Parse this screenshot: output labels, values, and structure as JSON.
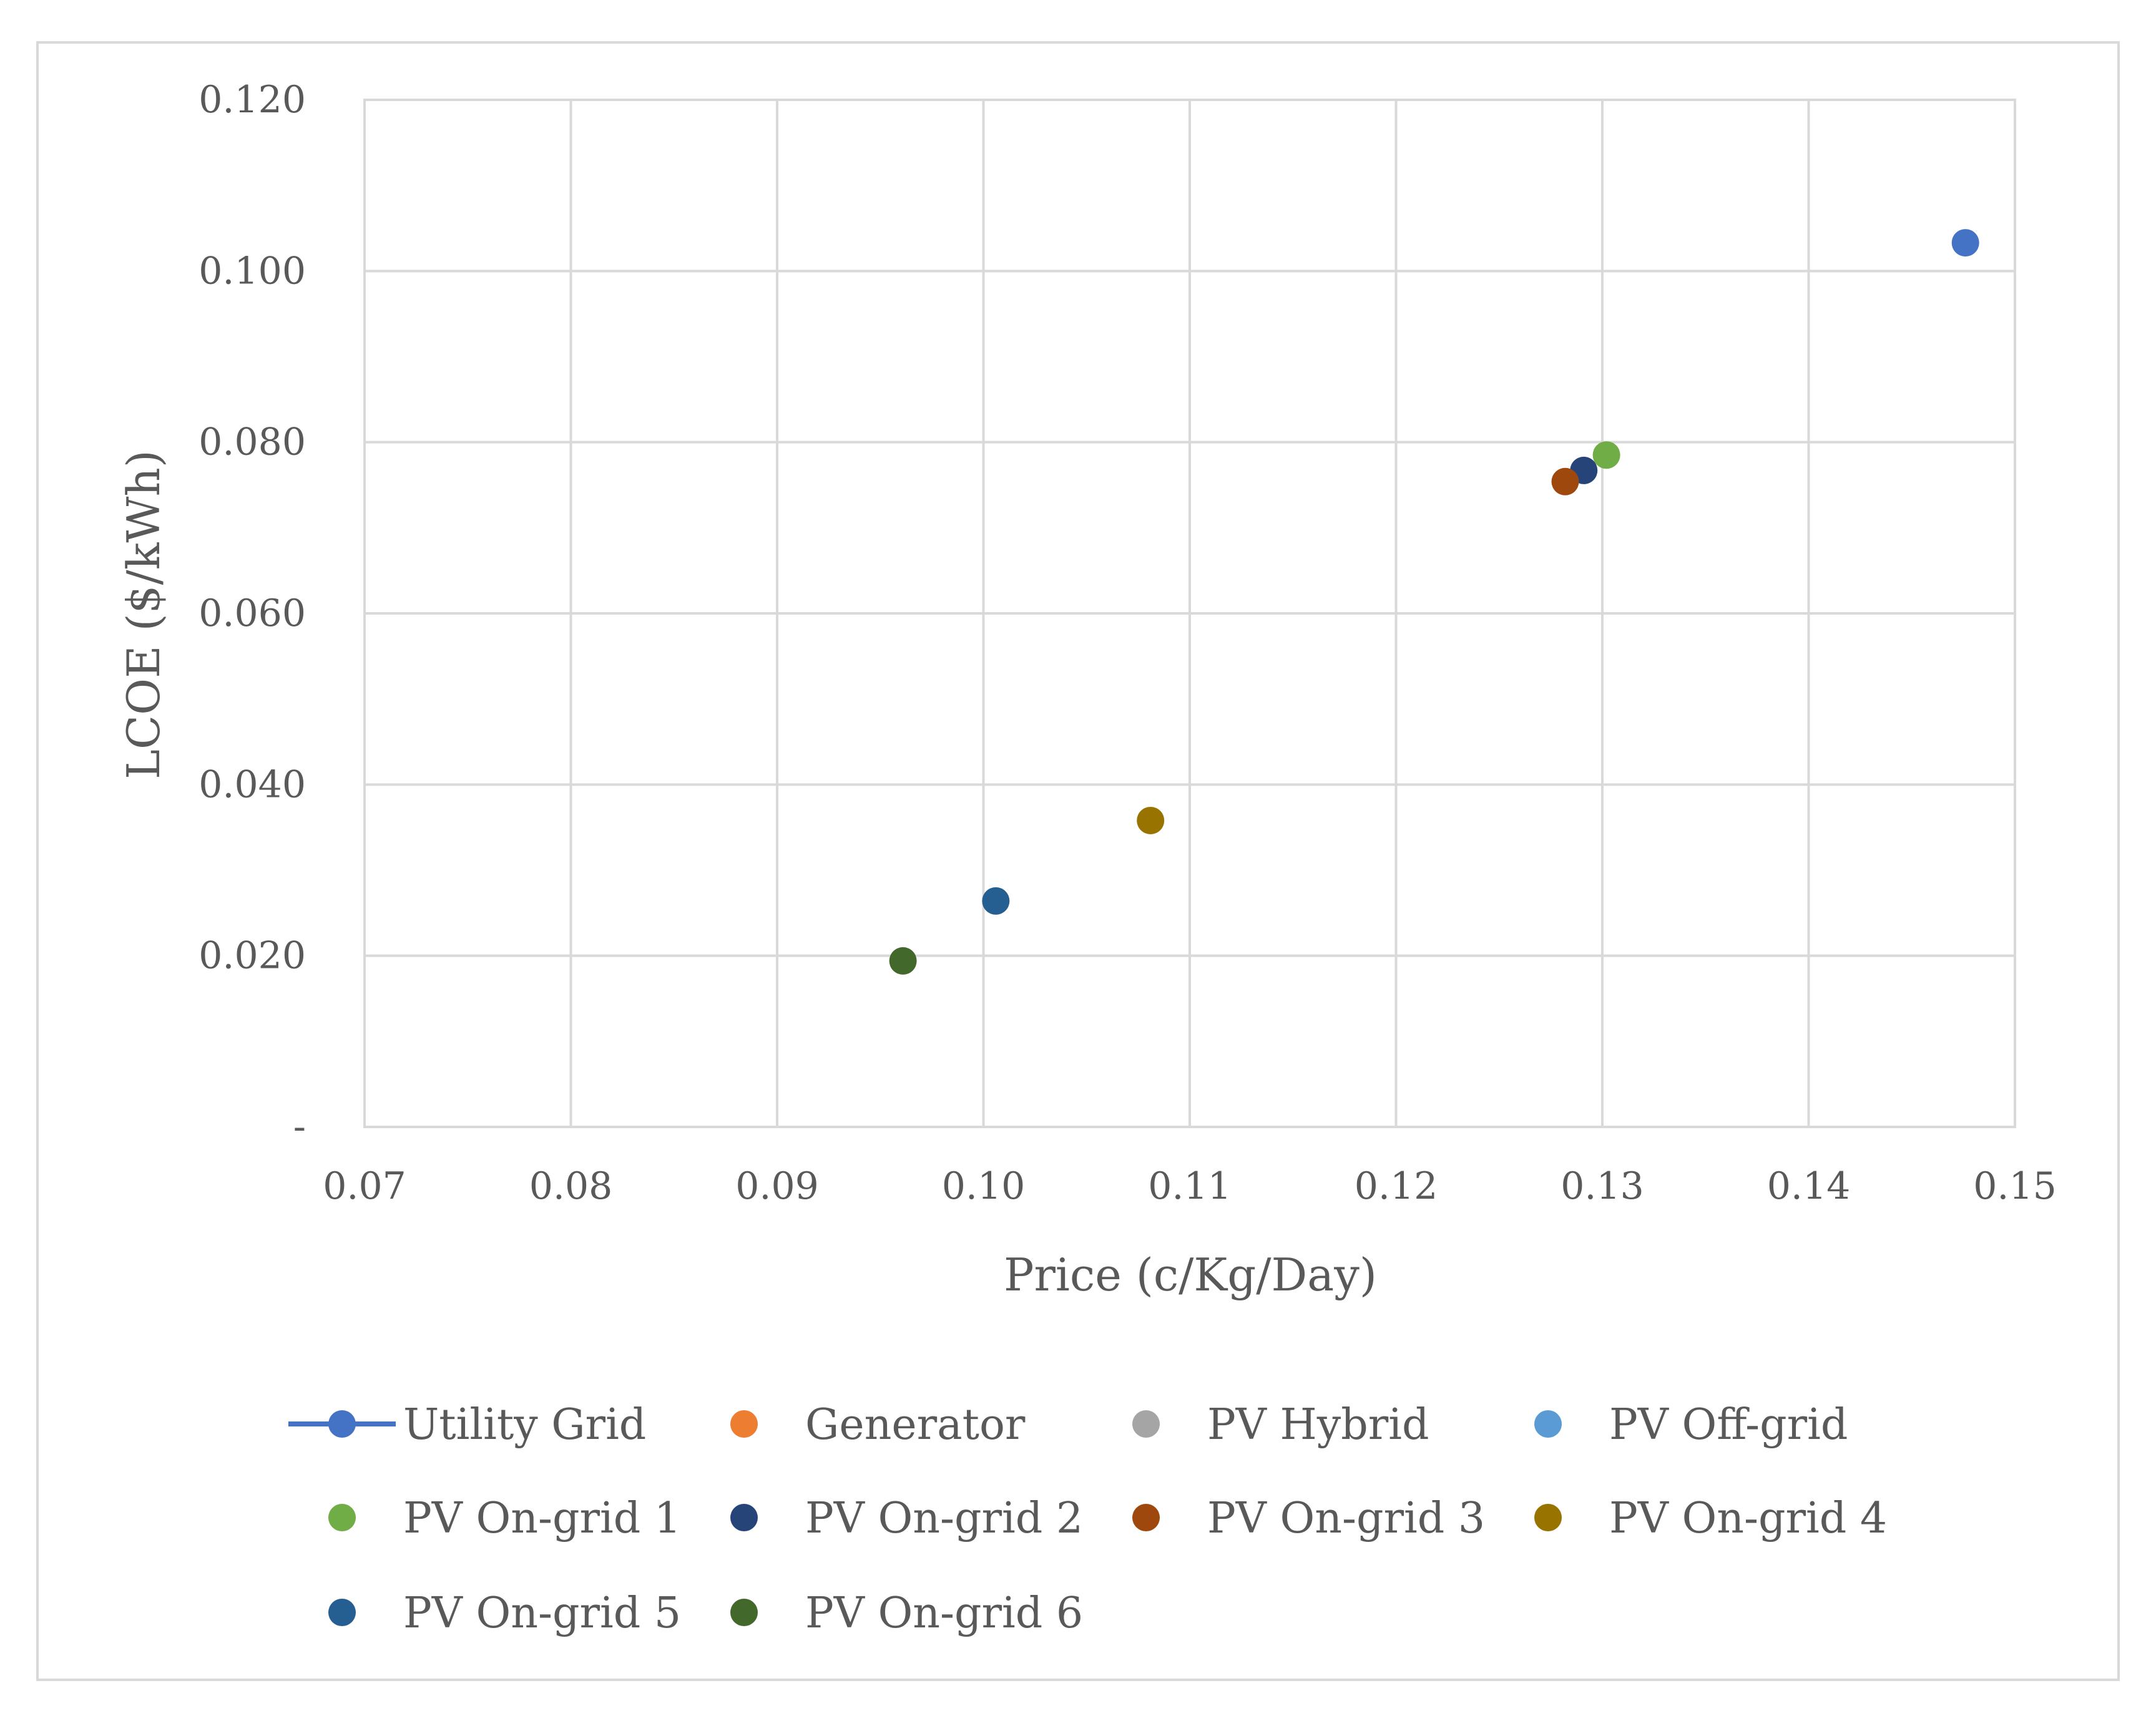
{
  "chart_data": {
    "type": "scatter",
    "title": "",
    "xlabel": "Price (c/Kg/Day)",
    "ylabel": "LCOE ($/kWh)",
    "xlim": [
      0.07,
      0.15
    ],
    "ylim": [
      0,
      0.12
    ],
    "grid": true,
    "x_ticks": [
      0.07,
      0.08,
      0.09,
      0.1,
      0.11,
      0.12,
      0.13,
      0.14,
      0.15
    ],
    "x_tick_labels": [
      "0.07",
      "0.08",
      "0.09",
      "0.10",
      "0.11",
      "0.12",
      "0.13",
      "0.14",
      "0.15"
    ],
    "y_ticks": [
      0,
      0.02,
      0.04,
      0.06,
      0.08,
      0.1,
      0.12
    ],
    "y_tick_labels": [
      "-",
      "0.020",
      "0.040",
      "0.060",
      "0.080",
      "0.100",
      "0.120"
    ],
    "legend_position": "bottom",
    "series": [
      {
        "name": "Utility Grid",
        "color": "#4472C4",
        "marker": "line-circle",
        "points": [
          [
            0.1476,
            0.1033
          ]
        ]
      },
      {
        "name": "Generator",
        "color": "#ED7D31",
        "marker": "circle",
        "points": []
      },
      {
        "name": "PV Hybrid",
        "color": "#A5A5A5",
        "marker": "circle",
        "points": []
      },
      {
        "name": "PV Off-grid",
        "color": "#5B9BD5",
        "marker": "circle",
        "points": []
      },
      {
        "name": "PV On-grid 1",
        "color": "#70AD47",
        "marker": "circle",
        "points": [
          [
            0.1302,
            0.0785
          ]
        ]
      },
      {
        "name": "PV On-grid 2",
        "color": "#264478",
        "marker": "circle",
        "points": [
          [
            0.1291,
            0.0767
          ]
        ]
      },
      {
        "name": "PV On-grid 3",
        "color": "#9E480E",
        "marker": "circle",
        "points": [
          [
            0.1282,
            0.0754
          ]
        ]
      },
      {
        "name": "PV On-grid 4",
        "color": "#997300",
        "marker": "circle",
        "points": [
          [
            0.1081,
            0.0358
          ]
        ]
      },
      {
        "name": "PV On-grid 5",
        "color": "#255E91",
        "marker": "circle",
        "points": [
          [
            0.1006,
            0.0264
          ]
        ]
      },
      {
        "name": "PV On-grid 6",
        "color": "#43682B",
        "marker": "circle",
        "points": [
          [
            0.0961,
            0.0194
          ]
        ]
      }
    ]
  }
}
